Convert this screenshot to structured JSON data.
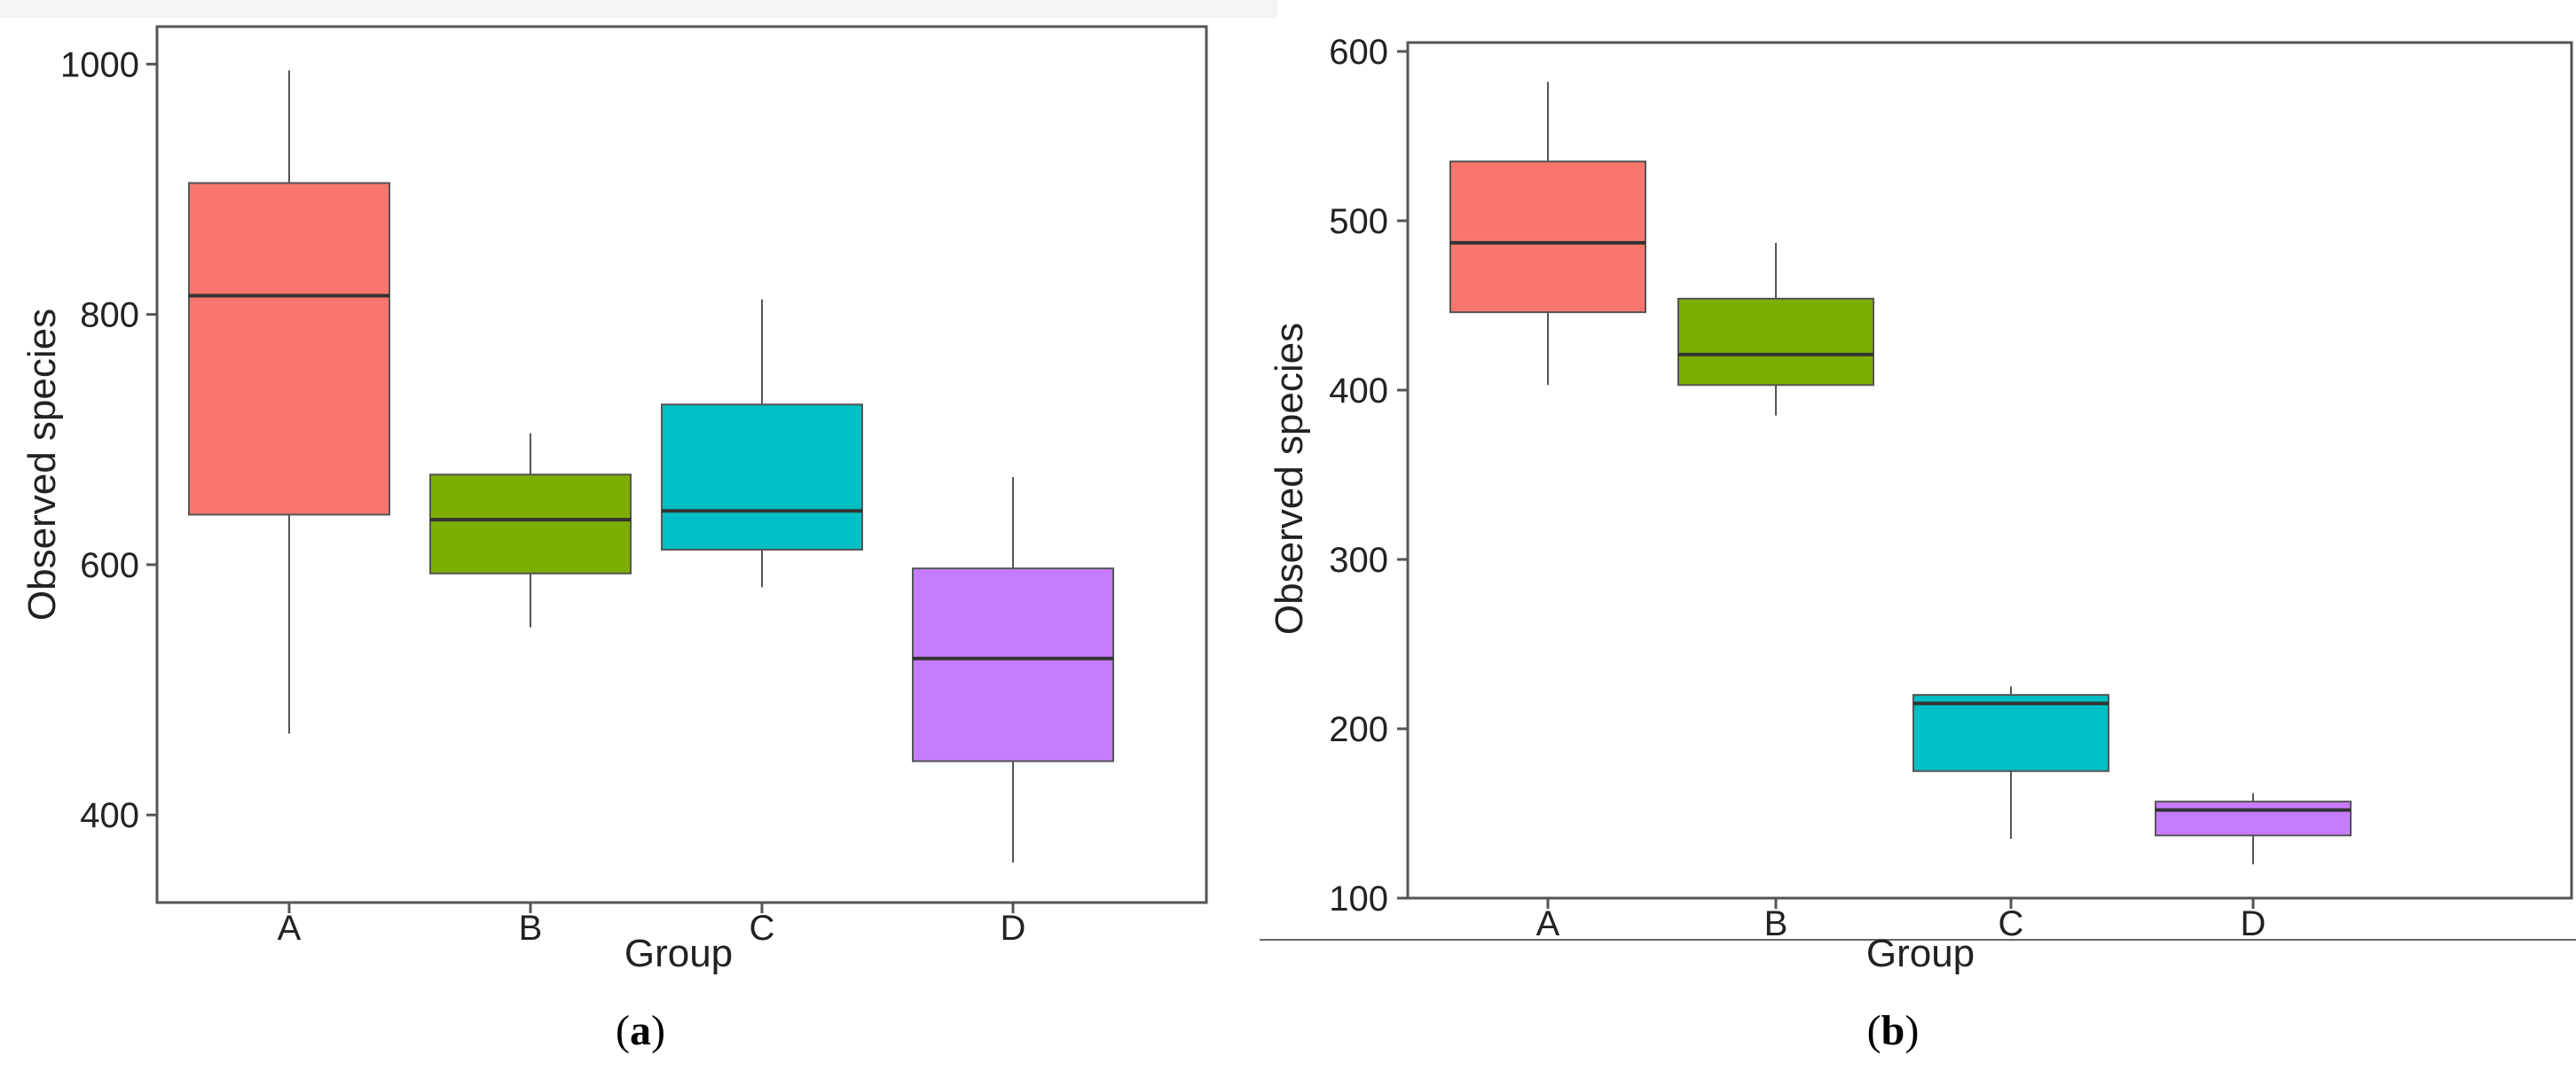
{
  "chart_data": [
    {
      "type": "boxplot",
      "panel_label": "a",
      "xlabel": "Group",
      "ylabel": "Observed species",
      "categories": [
        "A",
        "B",
        "C",
        "D"
      ],
      "ylim": [
        330,
        1030
      ],
      "yticks": [
        400,
        600,
        800,
        1000
      ],
      "boxes": [
        {
          "group": "A",
          "min": 465,
          "q1": 640,
          "median": 815,
          "q3": 905,
          "max": 995,
          "color": "#f8766d"
        },
        {
          "group": "B",
          "min": 550,
          "q1": 593,
          "median": 636,
          "q3": 672,
          "max": 705,
          "color": "#7cae00"
        },
        {
          "group": "C",
          "min": 582,
          "q1": 612,
          "median": 643,
          "q3": 728,
          "max": 812,
          "color": "#00bfc4"
        },
        {
          "group": "D",
          "min": 362,
          "q1": 443,
          "median": 525,
          "q3": 597,
          "max": 670,
          "color": "#c77cff"
        }
      ]
    },
    {
      "type": "boxplot",
      "panel_label": "b",
      "xlabel": "Group",
      "ylabel": "Observed species",
      "categories": [
        "A",
        "B",
        "C",
        "D"
      ],
      "ylim": [
        100,
        605
      ],
      "yticks": [
        100,
        200,
        300,
        400,
        500,
        600
      ],
      "boxes": [
        {
          "group": "A",
          "min": 403,
          "q1": 446,
          "median": 487,
          "q3": 535,
          "max": 582,
          "color": "#f8766d"
        },
        {
          "group": "B",
          "min": 385,
          "q1": 403,
          "median": 421,
          "q3": 454,
          "max": 487,
          "color": "#7cae00"
        },
        {
          "group": "C",
          "min": 135,
          "q1": 175,
          "median": 215,
          "q3": 220,
          "max": 225,
          "color": "#00bfc4"
        },
        {
          "group": "D",
          "min": 120,
          "q1": 137,
          "median": 152,
          "q3": 157,
          "max": 162,
          "color": "#c77cff"
        }
      ]
    }
  ]
}
